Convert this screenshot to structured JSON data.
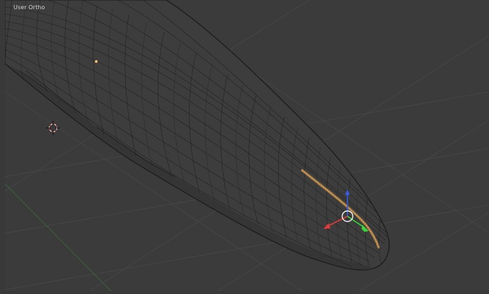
{
  "viewport": {
    "view_label": "User Ortho",
    "background_color": "#3b3b3b",
    "grid_color": "#505050",
    "mesh_fill_color": "#3c3c3c",
    "wire_color": "#1c1c1c",
    "selection_color": "#e8a04f",
    "axis_colors": {
      "x": "#e43a3a",
      "y": "#3ad43a",
      "z": "#3a5ce0"
    }
  },
  "icons": {
    "cursor": "3d-cursor-icon",
    "gizmo": "transform-manipulator-icon",
    "vertex": "selected-vertex-icon"
  }
}
